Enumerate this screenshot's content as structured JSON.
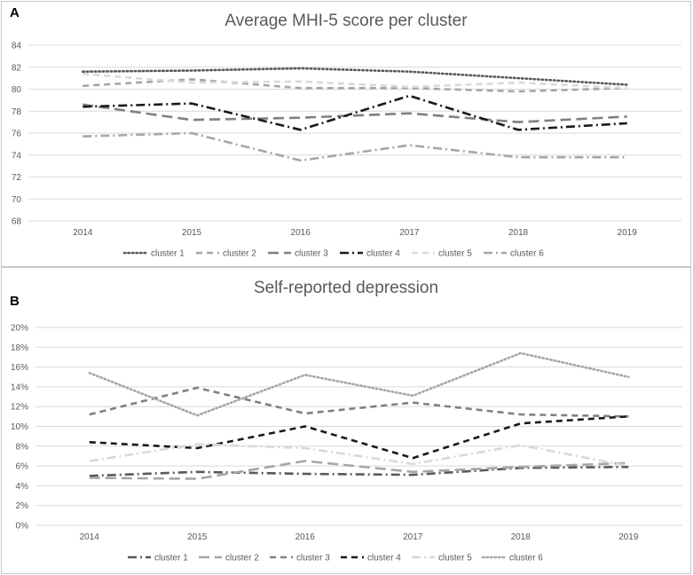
{
  "panels": [
    {
      "letter": "A",
      "title": "Average MHI-5 score per cluster"
    },
    {
      "letter": "B",
      "title": "Self-reported depression"
    }
  ],
  "chart_data": [
    {
      "type": "line",
      "title": "Average MHI-5 score per cluster",
      "x": [
        "2014",
        "2015",
        "2016",
        "2017",
        "2018",
        "2019"
      ],
      "ylim": [
        68,
        84
      ],
      "yticks": [
        68,
        70,
        72,
        74,
        76,
        78,
        80,
        82,
        84
      ],
      "ytick_labels": [
        "68",
        "70",
        "72",
        "74",
        "76",
        "78",
        "80",
        "82",
        "84"
      ],
      "grid": true,
      "legend_position": "bottom",
      "series": [
        {
          "name": "cluster 1",
          "values": [
            81.6,
            81.7,
            81.9,
            81.6,
            81.0,
            80.4
          ],
          "color": "#595959",
          "dash": "dot"
        },
        {
          "name": "cluster 2",
          "values": [
            80.3,
            80.9,
            80.1,
            80.1,
            79.8,
            80.1
          ],
          "color": "#a6a6a6",
          "dash": "dash"
        },
        {
          "name": "cluster 3",
          "values": [
            78.6,
            77.2,
            77.4,
            77.8,
            77.0,
            77.5
          ],
          "color": "#808080",
          "dash": "longdash"
        },
        {
          "name": "cluster 4",
          "values": [
            78.4,
            78.7,
            76.3,
            79.4,
            76.3,
            76.9
          ],
          "color": "#1a1a1a",
          "dash": "dashdot"
        },
        {
          "name": "cluster 5",
          "values": [
            81.4,
            80.6,
            80.7,
            80.2,
            80.6,
            80.1
          ],
          "color": "#d9d9d9",
          "dash": "dash"
        },
        {
          "name": "cluster 6",
          "values": [
            75.7,
            76.0,
            73.5,
            74.9,
            73.8,
            73.8
          ],
          "color": "#a6a6a6",
          "dash": "dashdot"
        }
      ]
    },
    {
      "type": "line",
      "title": "Self-reported depression",
      "x": [
        "2014",
        "2015",
        "2016",
        "2017",
        "2018",
        "2019"
      ],
      "ylim": [
        0,
        20
      ],
      "yticks": [
        0,
        2,
        4,
        6,
        8,
        10,
        12,
        14,
        16,
        18,
        20
      ],
      "ytick_labels": [
        "0%",
        "2%",
        "4%",
        "6%",
        "8%",
        "10%",
        "12%",
        "14%",
        "16%",
        "18%",
        "20%"
      ],
      "grid": true,
      "legend_position": "bottom",
      "series": [
        {
          "name": "cluster 1",
          "values": [
            5.0,
            5.4,
            5.2,
            5.1,
            5.8,
            5.9
          ],
          "color": "#595959",
          "dash": "dashdot"
        },
        {
          "name": "cluster 2",
          "values": [
            4.8,
            4.7,
            6.5,
            5.4,
            5.9,
            6.3
          ],
          "color": "#a6a6a6",
          "dash": "longdash"
        },
        {
          "name": "cluster 3",
          "values": [
            11.2,
            13.9,
            11.3,
            12.4,
            11.2,
            11.0
          ],
          "color": "#808080",
          "dash": "dash"
        },
        {
          "name": "cluster 4",
          "values": [
            8.4,
            7.8,
            10.0,
            6.8,
            10.3,
            11.0
          ],
          "color": "#1a1a1a",
          "dash": "dash"
        },
        {
          "name": "cluster 5",
          "values": [
            6.5,
            8.2,
            7.8,
            6.2,
            8.1,
            6.0
          ],
          "color": "#d9d9d9",
          "dash": "dashdot"
        },
        {
          "name": "cluster 6",
          "values": [
            15.4,
            11.1,
            15.2,
            13.1,
            17.4,
            15.0
          ],
          "color": "#a6a6a6",
          "dash": "dot"
        }
      ]
    }
  ]
}
